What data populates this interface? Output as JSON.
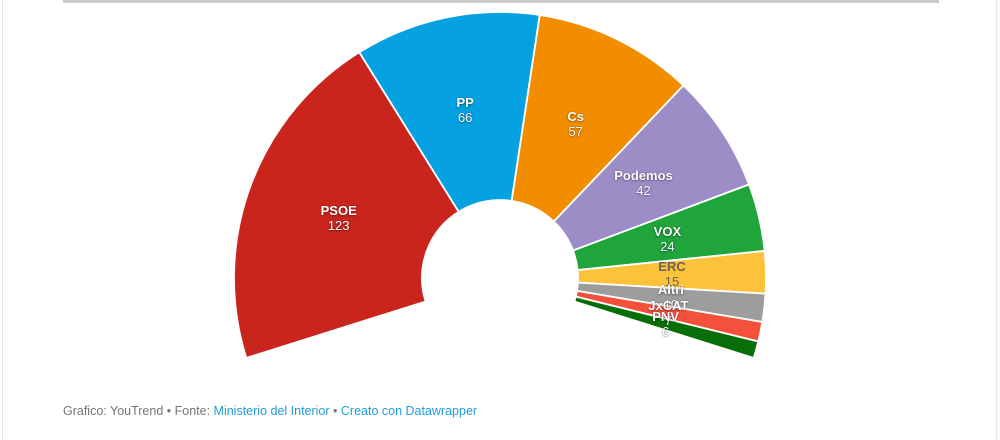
{
  "chart_data": {
    "type": "pie",
    "variant": "hemicycle-parliament-donut",
    "title": "",
    "total_seats": 350,
    "span_degrees": 215,
    "legend_position": "none",
    "parties": [
      {
        "name": "PSOE",
        "seats": 123,
        "color": "#C9251D",
        "text_color": "#ffffff"
      },
      {
        "name": "PP",
        "seats": 66,
        "color": "#05A1E0",
        "text_color": "#ffffff"
      },
      {
        "name": "Cs",
        "seats": 57,
        "color": "#F28D00",
        "text_color": "#ffffff"
      },
      {
        "name": "Podemos",
        "seats": 42,
        "color": "#9C8DC7",
        "text_color": "#ffffff"
      },
      {
        "name": "VOX",
        "seats": 24,
        "color": "#20A43C",
        "text_color": "#ffffff"
      },
      {
        "name": "ERC",
        "seats": 15,
        "color": "#FBC23A",
        "text_color": "#6B6459",
        "dark_text": true
      },
      {
        "name": "Altri",
        "seats": 10,
        "color": "#9D9D9D",
        "text_color": "#ffffff"
      },
      {
        "name": "JxCAT",
        "seats": 7,
        "color": "#F4513D",
        "text_color": "#ffffff"
      },
      {
        "name": "PNV",
        "seats": 6,
        "color": "#086E08",
        "text_color": "#ffffff"
      }
    ]
  },
  "footer": {
    "prefix": "Grafico: YouTrend • Fonte: ",
    "source_link": "Ministerio del Interior",
    "separator": " • ",
    "tool_link": "Creato con Datawrapper",
    "link_color": "#1E9CD7",
    "text_color": "#757575"
  }
}
